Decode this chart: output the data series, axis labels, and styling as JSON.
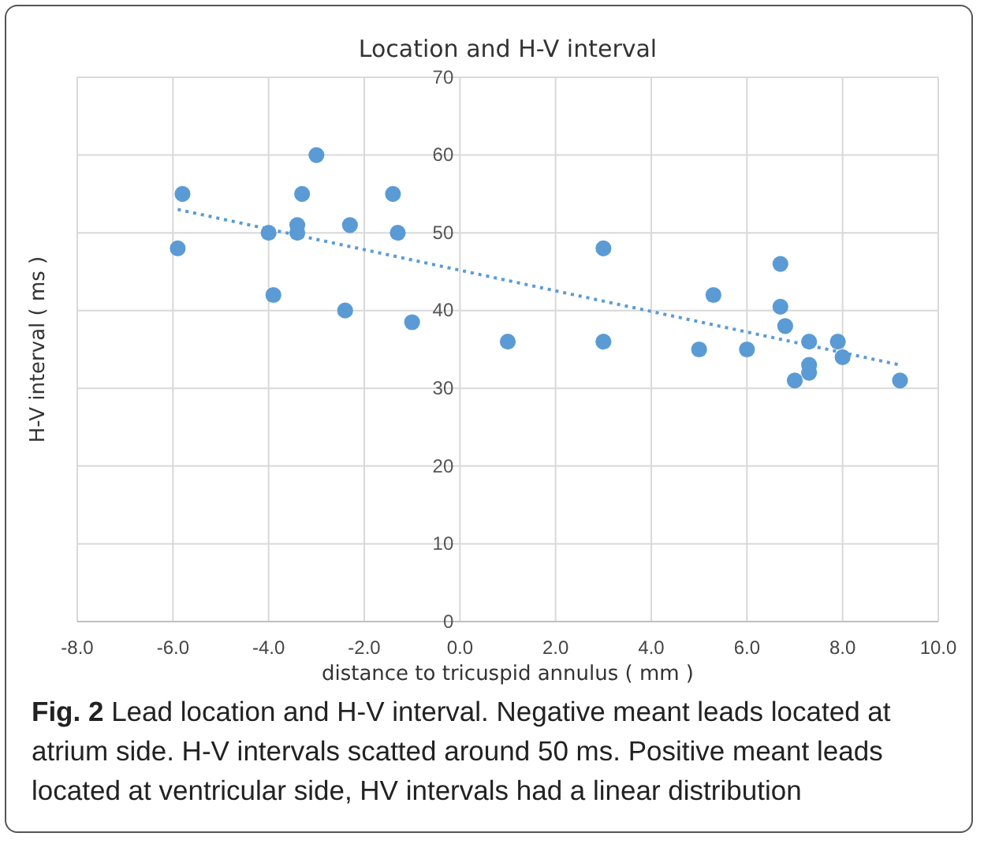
{
  "chart_data": {
    "type": "scatter",
    "title": "Location and H-V interval",
    "xlabel": "distance to tricuspid annulus ( mm )",
    "ylabel": "H-V interval ( ms )",
    "xlim": [
      -8,
      10
    ],
    "xticks": [
      {
        "value": -8,
        "label": "-8.0"
      },
      {
        "value": -6,
        "label": "-6.0"
      },
      {
        "value": -4,
        "label": "-4.0"
      },
      {
        "value": -2,
        "label": "-2.0"
      },
      {
        "value": 0,
        "label": "0.0"
      },
      {
        "value": 2,
        "label": "2.0"
      },
      {
        "value": 4,
        "label": "4.0"
      },
      {
        "value": 6,
        "label": "6.0"
      },
      {
        "value": 8,
        "label": "8.0"
      },
      {
        "value": 10,
        "label": "10.0"
      }
    ],
    "ylim": [
      0,
      70
    ],
    "yticks": [
      0,
      10,
      20,
      30,
      40,
      50,
      60,
      70
    ],
    "grid": true,
    "marker": "circle",
    "series": [
      {
        "type": "scatter",
        "color": "#5b9bd5",
        "x": [
          -5.8,
          -5.9,
          -3.0,
          -3.3,
          -3.4,
          -3.4,
          -4.0,
          -3.9,
          -2.3,
          -1.4,
          -1.3,
          -2.4,
          -1.0,
          1.0,
          3.0,
          3.0,
          5.0,
          5.3,
          6.0,
          6.7,
          6.7,
          6.8,
          7.3,
          7.3,
          7.3,
          7.0,
          7.9,
          8.0,
          9.2
        ],
        "values": [
          55,
          48,
          60,
          55,
          51,
          50,
          50,
          42,
          51,
          55,
          50,
          40,
          38.5,
          36,
          48,
          36,
          35,
          42,
          35,
          46,
          40.5,
          38,
          36,
          33,
          32,
          31,
          36,
          34,
          31
        ]
      },
      {
        "type": "line",
        "color": "#5b9bd5",
        "line_style": "dotted",
        "marker": "none",
        "x": [
          -5.9,
          9.2
        ],
        "values": [
          53,
          33
        ]
      }
    ],
    "annotations": [
      "Fig. 2  Lead location and H-V interval. Negative meant leads located at atrium side. H-V intervals scatted around 50 ms. Positive meant leads located at ventricular side, HV intervals had a linear distribution"
    ]
  }
}
